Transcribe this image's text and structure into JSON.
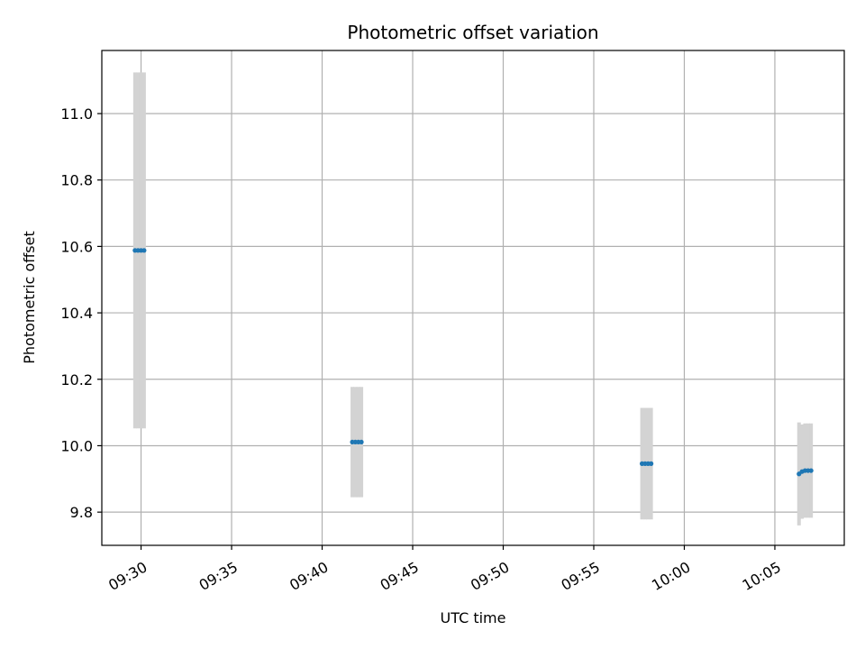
{
  "chart_data": {
    "type": "scatter",
    "title": "Photometric offset variation",
    "xlabel": "UTC time",
    "ylabel": "Photometric offset",
    "grid": true,
    "xlim": [
      "09:27:50",
      "10:08:50"
    ],
    "ylim": [
      9.7,
      11.19
    ],
    "x_ticks": [
      "09:30",
      "09:35",
      "09:40",
      "09:45",
      "09:50",
      "09:55",
      "10:00",
      "10:05"
    ],
    "y_ticks": [
      9.8,
      10.0,
      10.2,
      10.4,
      10.6,
      10.8,
      11.0
    ],
    "colors": {
      "points": "#1f77b4",
      "error_bars": "#d3d3d3",
      "grid": "#b0b0b0"
    },
    "series": [
      {
        "x": [
          "09:29:40",
          "09:29:50",
          "09:30:00",
          "09:30:10"
        ],
        "y": [
          10.588,
          10.588,
          10.588,
          10.588
        ],
        "yerr": [
          0.536,
          0.536,
          0.536,
          0.536
        ]
      },
      {
        "x": [
          "09:41:40",
          "09:41:50",
          "09:42:00",
          "09:42:10"
        ],
        "y": [
          10.011,
          10.011,
          10.011,
          10.011
        ],
        "yerr": [
          0.166,
          0.166,
          0.166,
          0.166
        ]
      },
      {
        "x": [
          "09:57:40",
          "09:57:50",
          "09:58:00",
          "09:58:10"
        ],
        "y": [
          9.946,
          9.946,
          9.946,
          9.946
        ],
        "yerr": [
          0.168,
          0.168,
          0.168,
          0.168
        ]
      },
      {
        "x": [
          "10:06:20",
          "10:06:30",
          "10:06:40",
          "10:06:50",
          "10:07:00"
        ],
        "y": [
          9.915,
          9.922,
          9.925,
          9.925,
          9.925
        ],
        "yerr": [
          0.155,
          0.142,
          0.142,
          0.142,
          0.142
        ]
      }
    ]
  }
}
